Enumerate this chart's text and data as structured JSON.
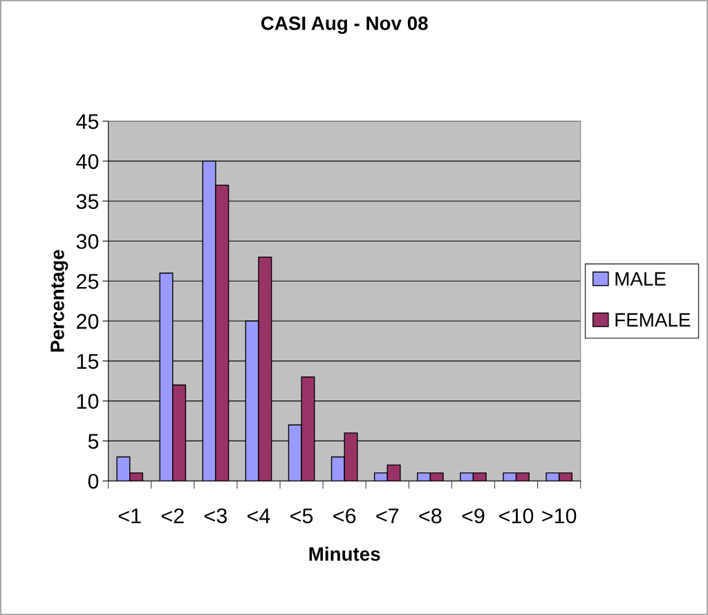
{
  "chart_data": {
    "type": "bar",
    "title": "CASI Aug - Nov 08",
    "xlabel": "Minutes",
    "ylabel": "Percentage",
    "categories": [
      "<1",
      "<2",
      "<3",
      "<4",
      "<5",
      "<6",
      "<7",
      "<8",
      "<9",
      "<10",
      ">10"
    ],
    "series": [
      {
        "name": "MALE",
        "color": "#9999ff",
        "values": [
          3,
          26,
          40,
          20,
          7,
          3,
          1,
          1,
          1,
          1,
          1
        ]
      },
      {
        "name": "FEMALE",
        "color": "#993366",
        "values": [
          1,
          12,
          37,
          28,
          13,
          6,
          2,
          1,
          1,
          1,
          1
        ]
      }
    ],
    "ylim": [
      0,
      45
    ],
    "yticks": [
      0,
      5,
      10,
      15,
      20,
      25,
      30,
      35,
      40,
      45
    ],
    "grid": "y",
    "legend": "right"
  }
}
